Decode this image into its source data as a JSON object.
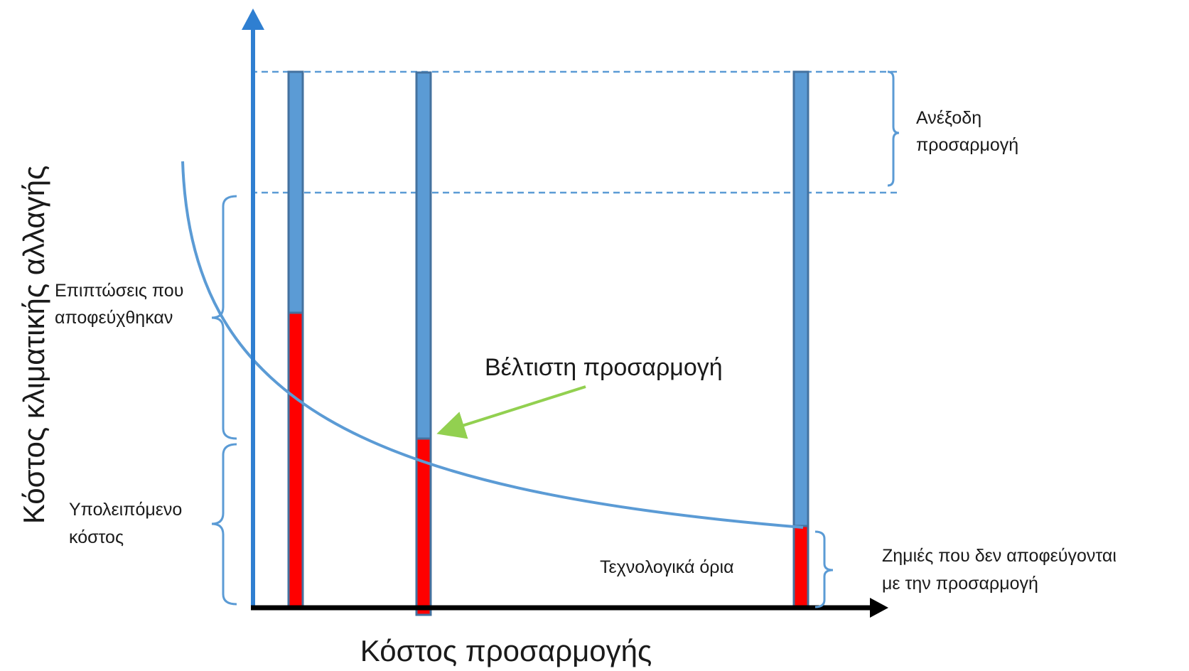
{
  "axes": {
    "y_label": "Κόστος κλιματικής αλλαγής",
    "x_label": "Κόστος προσαρμογής"
  },
  "labels": {
    "unnecessary_adaptation": [
      "Ανέξοδη",
      "προσαρμογή"
    ],
    "avoided_impacts": [
      "Επιπτώσεις που",
      "αποφεύχθηκαν"
    ],
    "residual_cost": [
      "Υπολειπόμενο",
      "κόστος"
    ],
    "optimal_adaptation": "Βέλτιστη προσαρμογή",
    "technological_limits": "Τεχνολογικά όρια",
    "unavoidable_damages": [
      "Ζημιές που δεν αποφεύγονται",
      "με την προσαρμογή"
    ]
  },
  "colors": {
    "axis_y": "#2f7fd1",
    "axis_x": "#000000",
    "bar_blue": "#5b9bd5",
    "bar_border": "#44729f",
    "bar_red": "#ff0000",
    "curve": "#5b9bd5",
    "bracket": "#5b9bd5",
    "dashed": "#5b9bd5",
    "arrow_green": "#92d050"
  }
}
